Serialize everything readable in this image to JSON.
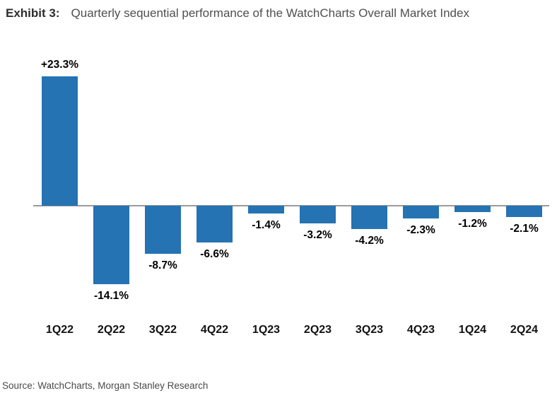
{
  "header": {
    "exhibit_label": "Exhibit 3:",
    "title": "Quarterly sequential performance of the WatchCharts Overall Market Index"
  },
  "footer": {
    "source": "Source: WatchCharts, Morgan Stanley Research"
  },
  "colors": {
    "bar": "#2573b2",
    "axis": "#9b9b9b",
    "value_label": "#000000",
    "exhibit_label": "#2d2d2d",
    "title_text": "#4f4f4f",
    "source_text": "#4a4a4a"
  },
  "chart_data": {
    "type": "bar",
    "title": "Quarterly sequential performance of the WatchCharts Overall Market Index",
    "categories": [
      "1Q22",
      "2Q22",
      "3Q22",
      "4Q22",
      "1Q23",
      "2Q23",
      "3Q23",
      "4Q23",
      "1Q24",
      "2Q24"
    ],
    "values": [
      23.3,
      -14.1,
      -8.7,
      -6.6,
      -1.4,
      -3.2,
      -4.2,
      -2.3,
      -1.2,
      -2.1
    ],
    "value_labels": [
      "+23.3%",
      "-14.1%",
      "-8.7%",
      "-6.6%",
      "-1.4%",
      "-3.2%",
      "-4.2%",
      "-2.3%",
      "-1.2%",
      "-2.1%"
    ],
    "xlabel": "",
    "ylabel": "",
    "ylim": [
      -16,
      25
    ],
    "grid": false,
    "legend": false,
    "bar_color": "#2573b2",
    "baseline": 0
  }
}
